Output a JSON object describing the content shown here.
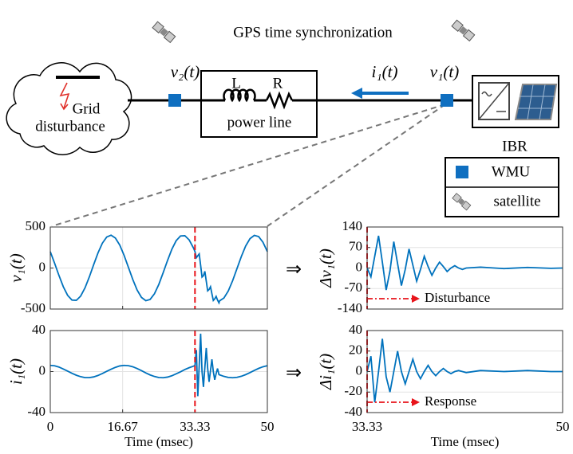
{
  "diagram": {
    "title": "GPS time synchronization",
    "cloud_line1": "Grid",
    "cloud_line2": "disturbance",
    "inductor": "L",
    "resistor": "R",
    "box_label": "power line",
    "ibr": "IBR",
    "v2": "v₂(t)",
    "i1": "i₁(t)",
    "v1": "v₁(t)",
    "legend_wmu": "WMU",
    "legend_satellite": "satellite",
    "implies": "⇒"
  },
  "chart_data": [
    {
      "type": "line",
      "y_label": "v₁(t)",
      "xlim": [
        0,
        50
      ],
      "xticks": [
        0,
        16.67,
        33.33,
        50
      ],
      "ylim": [
        -500,
        500
      ],
      "yticks": [
        -500,
        0,
        500
      ],
      "grid": true,
      "vline": 33.33,
      "vline_color": "#e8141b",
      "x": [
        0,
        1,
        2,
        3,
        4,
        5,
        6,
        7,
        8,
        9,
        10,
        11,
        12,
        13,
        14,
        15,
        16,
        17,
        18,
        19,
        20,
        21,
        22,
        23,
        24,
        25,
        26,
        27,
        28,
        29,
        30,
        31,
        32,
        33,
        33.33,
        33.655,
        33.98,
        34.305,
        34.63,
        34.955,
        35.28,
        35.605,
        35.93,
        36.255,
        36.58,
        36.905,
        37.23,
        37.555,
        37.88,
        38.205,
        38.53,
        38.855,
        39,
        40,
        41,
        42,
        43,
        44,
        45,
        46,
        47,
        48,
        49,
        50
      ],
      "series": [
        {
          "color": "#0072bd",
          "values": [
            200,
            58,
            -91,
            -228,
            -333,
            -391,
            -394,
            -342,
            -242,
            -108,
            42,
            185,
            303,
            378,
            400,
            365,
            280,
            155,
            8,
            -139,
            -268,
            -358,
            -398,
            -383,
            -313,
            -200,
            -58,
            91,
            228,
            333,
            391,
            394,
            342,
            242,
            200,
            126,
            150,
            172,
            34,
            -110,
            -93,
            -40,
            -160,
            -278,
            -262,
            -228,
            -314,
            -395,
            -376,
            -346,
            -391,
            -425,
            -400,
            -365,
            -280,
            -155,
            -8,
            139,
            268,
            358,
            398,
            383,
            313,
            200
          ]
        }
      ]
    },
    {
      "type": "line",
      "y_label": "i₁(t)",
      "x_label": "Time (msec)",
      "xlim": [
        0,
        50
      ],
      "xticks": [
        0,
        16.67,
        33.33,
        50
      ],
      "ylim": [
        -40,
        40
      ],
      "yticks": [
        -40,
        0,
        40
      ],
      "grid": true,
      "vline": 33.33,
      "vline_color": "#e8141b",
      "x": [
        0,
        1,
        2,
        3,
        4,
        5,
        6,
        7,
        8,
        9,
        10,
        11,
        12,
        13,
        14,
        15,
        16,
        17,
        18,
        19,
        20,
        21,
        22,
        23,
        24,
        25,
        26,
        27,
        28,
        29,
        30,
        31,
        32,
        33,
        33.33,
        33.655,
        33.98,
        34.305,
        34.63,
        34.955,
        35.28,
        35.605,
        35.93,
        36.255,
        36.58,
        36.905,
        37.23,
        37.555,
        37.88,
        38.205,
        38.53,
        38.855,
        39,
        40,
        41,
        42,
        43,
        44,
        45,
        46,
        47,
        48,
        49,
        50
      ],
      "series": [
        {
          "color": "#0072bd",
          "values": [
            6,
            5.6,
            4.4,
            2.5,
            0.4,
            -1.7,
            -3.6,
            -5,
            -5.9,
            -5.9,
            -5.2,
            -3.8,
            -1.9,
            0.2,
            2.3,
            4.1,
            5.5,
            6,
            5.7,
            4.7,
            3,
            0.9,
            -1.3,
            -3.3,
            -4.8,
            -5.8,
            -6,
            -5.4,
            -4.1,
            -2.2,
            -0.2,
            2,
            3.8,
            5.3,
            6,
            21,
            -24,
            6,
            37,
            0,
            -15,
            4,
            23,
            3,
            -10,
            1,
            12,
            0,
            -8,
            -2,
            3,
            -3,
            -3.2,
            -4.7,
            -5.7,
            -6,
            -5.6,
            -4.6,
            -3,
            -1,
            1.1,
            3.1,
            4.7,
            5.7
          ]
        }
      ]
    },
    {
      "type": "line",
      "y_label": "Δv₁(t)",
      "xlim": [
        33.33,
        50
      ],
      "xticks": [
        33.33,
        50
      ],
      "ylim": [
        -140,
        140
      ],
      "yticks": [
        -140,
        -70,
        0,
        70,
        140
      ],
      "grid": true,
      "vline": 33.33,
      "vline_color": "#e8141b",
      "annotation": "Disturbance",
      "x": [
        33.33,
        33.655,
        33.98,
        34.305,
        34.63,
        34.955,
        35.28,
        35.605,
        35.93,
        36.255,
        36.58,
        36.905,
        37.23,
        37.555,
        37.88,
        38.205,
        38.53,
        38.855,
        39.18,
        39.505,
        39.83,
        40.155,
        40.48,
        40.805,
        41.13,
        41.455,
        41.78,
        43,
        45,
        47,
        49,
        50
      ],
      "series": [
        {
          "color": "#0072bd",
          "values": [
            0,
            -30,
            40,
            110,
            20,
            -75,
            -10,
            90,
            15,
            -60,
            -5,
            65,
            10,
            -45,
            -5,
            40,
            5,
            -25,
            0,
            20,
            5,
            -12,
            0,
            8,
            0,
            -5,
            0,
            3,
            -2,
            2,
            -1,
            0
          ]
        }
      ]
    },
    {
      "type": "line",
      "y_label": "Δi₁(t)",
      "x_label": "Time (msec)",
      "xlim": [
        33.33,
        50
      ],
      "xticks": [
        33.33,
        50
      ],
      "ylim": [
        -40,
        40
      ],
      "yticks": [
        -40,
        -20,
        0,
        20,
        40
      ],
      "grid": true,
      "vline": 33.33,
      "vline_color": "#e8141b",
      "annotation": "Response",
      "x": [
        33.33,
        33.655,
        33.98,
        34.305,
        34.63,
        34.955,
        35.28,
        35.605,
        35.93,
        36.255,
        36.58,
        36.905,
        37.23,
        37.555,
        37.88,
        38.205,
        38.53,
        38.855,
        39.18,
        39.505,
        39.83,
        40.155,
        40.48,
        40.805,
        41.13,
        41.455,
        41.78,
        43,
        45,
        47,
        49,
        50
      ],
      "series": [
        {
          "color": "#0072bd",
          "values": [
            0,
            15,
            -30,
            0,
            32,
            -5,
            -20,
            0,
            20,
            0,
            -12,
            0,
            12,
            0,
            -7,
            0,
            6,
            0,
            -4,
            0,
            3,
            0,
            -2,
            0,
            1,
            0,
            -1,
            1,
            0,
            1,
            0,
            0
          ]
        }
      ]
    }
  ]
}
